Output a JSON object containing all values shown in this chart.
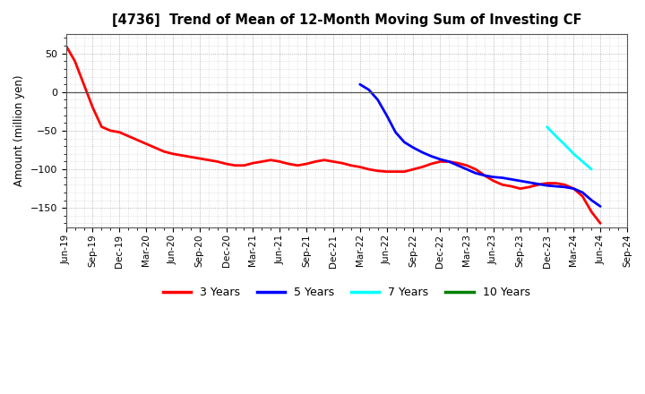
{
  "title": "[4736]  Trend of Mean of 12-Month Moving Sum of Investing CF",
  "ylabel": "Amount (million yen)",
  "ylim": [
    -175,
    75
  ],
  "yticks": [
    -150,
    -100,
    -50,
    0,
    50
  ],
  "background_color": "#ffffff",
  "grid_color": "#999999",
  "series": {
    "3years": {
      "color": "#ff0000",
      "x": [
        0,
        1,
        2,
        3,
        4,
        5,
        6,
        7,
        8,
        9,
        10,
        11,
        12,
        13,
        14,
        15,
        16,
        17,
        18,
        19,
        20,
        21,
        22,
        23,
        24,
        25,
        26,
        27,
        28,
        29,
        30,
        31,
        32,
        33,
        34,
        35,
        36,
        37,
        38,
        39,
        40,
        41,
        42,
        43,
        44,
        45,
        46,
        47,
        48,
        49,
        50,
        51,
        52,
        53,
        54,
        55,
        56,
        57,
        58,
        59,
        60
      ],
      "y": [
        60,
        40,
        10,
        -20,
        -45,
        -50,
        -52,
        -57,
        -62,
        -67,
        -72,
        -77,
        -80,
        -82,
        -84,
        -86,
        -88,
        -90,
        -93,
        -95,
        -95,
        -92,
        -90,
        -88,
        -90,
        -93,
        -95,
        -93,
        -90,
        -88,
        -90,
        -92,
        -95,
        -97,
        -100,
        -102,
        -103,
        -103,
        -103,
        -100,
        -97,
        -93,
        -90,
        -90,
        -92,
        -95,
        -100,
        -108,
        -115,
        -120,
        -122,
        -125,
        -123,
        -120,
        -118,
        -118,
        -120,
        -125,
        -135,
        -155,
        -170
      ]
    },
    "5years": {
      "color": "#0000ff",
      "x": [
        33,
        34,
        35,
        36,
        37,
        38,
        39,
        40,
        41,
        42,
        43,
        44,
        45,
        46,
        47,
        48,
        49,
        50,
        51,
        52,
        53,
        54,
        55,
        56,
        57,
        58,
        59,
        60
      ],
      "y": [
        10,
        3,
        -10,
        -30,
        -52,
        -65,
        -72,
        -78,
        -83,
        -87,
        -90,
        -95,
        -100,
        -105,
        -108,
        -110,
        -111,
        -113,
        -115,
        -117,
        -119,
        -121,
        -122,
        -123,
        -125,
        -130,
        -140,
        -148
      ]
    },
    "7years": {
      "color": "#00ffff",
      "x": [
        54,
        55,
        56,
        57,
        58,
        59
      ],
      "y": [
        -45,
        -57,
        -68,
        -80,
        -90,
        -100
      ]
    },
    "10years": {
      "color": "#008000",
      "x": [],
      "y": []
    }
  },
  "x_labels": [
    "Jun-19",
    "Sep-19",
    "Dec-19",
    "Mar-20",
    "Jun-20",
    "Sep-20",
    "Dec-20",
    "Mar-21",
    "Jun-21",
    "Sep-21",
    "Dec-21",
    "Mar-22",
    "Jun-22",
    "Sep-22",
    "Dec-22",
    "Mar-23",
    "Jun-23",
    "Sep-23",
    "Dec-23",
    "Mar-24",
    "Jun-24",
    "Sep-24"
  ],
  "x_tick_positions": [
    0,
    3,
    6,
    9,
    12,
    15,
    18,
    21,
    24,
    27,
    30,
    33,
    36,
    39,
    42,
    45,
    48,
    51,
    54,
    57,
    60,
    63
  ],
  "legend": [
    {
      "label": "3 Years",
      "color": "#ff0000"
    },
    {
      "label": "5 Years",
      "color": "#0000ff"
    },
    {
      "label": "7 Years",
      "color": "#00ffff"
    },
    {
      "label": "10 Years",
      "color": "#008000"
    }
  ]
}
